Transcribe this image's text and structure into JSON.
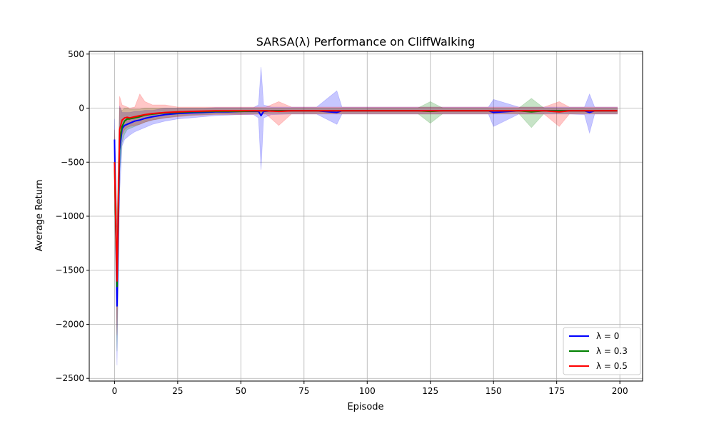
{
  "chart_data": {
    "type": "line",
    "title": "SARSA(λ) Performance on CliffWalking",
    "xlabel": "Episode",
    "ylabel": "Average Return",
    "xlim": [
      -10,
      209
    ],
    "ylim": [
      -2525,
      525
    ],
    "xticks": [
      0,
      25,
      50,
      75,
      100,
      125,
      150,
      175,
      200
    ],
    "xtick_labels": [
      "0",
      "25",
      "50",
      "75",
      "100",
      "125",
      "150",
      "175",
      "200"
    ],
    "yticks": [
      500,
      0,
      -500,
      -1000,
      -1500,
      -2000,
      -2500
    ],
    "ytick_labels": [
      "500",
      "0",
      "−500",
      "−1000",
      "−1500",
      "−2000",
      "−2500"
    ],
    "grid": true,
    "legend_position": "bottom-right",
    "band_alpha": 0.22,
    "series": [
      {
        "name": "λ = 0",
        "color": "#0000ff",
        "x": [
          0,
          1,
          2,
          3,
          4,
          5,
          6,
          8,
          10,
          12,
          15,
          20,
          25,
          30,
          35,
          40,
          45,
          50,
          55,
          57,
          58,
          59,
          62,
          70,
          80,
          88,
          90,
          100,
          110,
          120,
          130,
          140,
          148,
          150,
          160,
          170,
          180,
          186,
          188,
          190,
          199
        ],
        "y": [
          -290,
          -1830,
          -390,
          -190,
          -160,
          -150,
          -140,
          -120,
          -110,
          -95,
          -80,
          -60,
          -50,
          -45,
          -40,
          -35,
          -35,
          -30,
          -30,
          -30,
          -70,
          -30,
          -25,
          -25,
          -25,
          -40,
          -25,
          -25,
          -25,
          -25,
          -25,
          -25,
          -25,
          -40,
          -25,
          -25,
          -25,
          -25,
          -40,
          -25,
          -25
        ],
        "lower": [
          -500,
          -2380,
          -800,
          -350,
          -290,
          -270,
          -250,
          -220,
          -200,
          -180,
          -150,
          -120,
          -100,
          -90,
          -80,
          -70,
          -65,
          -60,
          -60,
          -90,
          -570,
          -90,
          -60,
          -55,
          -55,
          -150,
          -55,
          -55,
          -55,
          -55,
          -55,
          -55,
          -55,
          -170,
          -55,
          -55,
          -55,
          -60,
          -230,
          -55,
          -55
        ],
        "upper": [
          -100,
          -1300,
          20,
          -40,
          -40,
          -40,
          -40,
          -30,
          -30,
          -20,
          -20,
          0,
          0,
          0,
          0,
          5,
          5,
          5,
          5,
          30,
          380,
          30,
          10,
          10,
          10,
          160,
          10,
          10,
          10,
          10,
          10,
          10,
          10,
          80,
          10,
          10,
          10,
          10,
          130,
          10,
          10
        ]
      },
      {
        "name": "λ = 0.3",
        "color": "#008000",
        "x": [
          0,
          1,
          2,
          3,
          4,
          5,
          6,
          8,
          10,
          12,
          15,
          20,
          25,
          30,
          40,
          50,
          60,
          70,
          80,
          90,
          100,
          110,
          120,
          125,
          130,
          140,
          150,
          160,
          165,
          170,
          180,
          190,
          199
        ],
        "y": [
          -500,
          -1650,
          -300,
          -170,
          -120,
          -100,
          -100,
          -90,
          -80,
          -65,
          -55,
          -45,
          -40,
          -35,
          -30,
          -30,
          -25,
          -25,
          -25,
          -25,
          -25,
          -25,
          -25,
          -30,
          -25,
          -25,
          -25,
          -25,
          -35,
          -25,
          -25,
          -25,
          -25
        ],
        "lower": [
          -800,
          -2250,
          -600,
          -320,
          -240,
          -200,
          -190,
          -170,
          -150,
          -130,
          -110,
          -90,
          -75,
          -65,
          -55,
          -55,
          -50,
          -50,
          -50,
          -50,
          -50,
          -50,
          -50,
          -140,
          -50,
          -50,
          -50,
          -50,
          -180,
          -50,
          -50,
          -50,
          -50
        ],
        "upper": [
          -200,
          -1050,
          0,
          -20,
          0,
          0,
          -10,
          -10,
          -10,
          0,
          0,
          0,
          0,
          0,
          0,
          0,
          0,
          0,
          0,
          0,
          0,
          0,
          0,
          60,
          0,
          0,
          0,
          0,
          90,
          0,
          0,
          0,
          0
        ]
      },
      {
        "name": "λ = 0.5",
        "color": "#ff0000",
        "x": [
          0,
          1,
          2,
          3,
          4,
          5,
          6,
          8,
          10,
          12,
          15,
          20,
          25,
          30,
          40,
          50,
          60,
          65,
          70,
          80,
          90,
          100,
          110,
          120,
          130,
          140,
          150,
          160,
          170,
          176,
          180,
          190,
          199
        ],
        "y": [
          -500,
          -1600,
          -200,
          -110,
          -90,
          -85,
          -90,
          -80,
          -70,
          -60,
          -50,
          -40,
          -35,
          -30,
          -25,
          -25,
          -25,
          -30,
          -25,
          -25,
          -25,
          -25,
          -25,
          -25,
          -25,
          -25,
          -25,
          -25,
          -25,
          -35,
          -25,
          -25,
          -25
        ],
        "lower": [
          -800,
          -2100,
          -400,
          -250,
          -200,
          -180,
          -170,
          -160,
          -150,
          -130,
          -110,
          -90,
          -80,
          -70,
          -60,
          -60,
          -55,
          -160,
          -55,
          -55,
          -55,
          -55,
          -55,
          -55,
          -55,
          -55,
          -55,
          -55,
          -55,
          -170,
          -55,
          -55,
          -55
        ],
        "upper": [
          -200,
          -1100,
          110,
          30,
          20,
          10,
          0,
          10,
          130,
          60,
          30,
          30,
          10,
          10,
          10,
          10,
          10,
          60,
          10,
          10,
          10,
          10,
          10,
          10,
          10,
          10,
          10,
          10,
          10,
          60,
          10,
          10,
          10
        ]
      }
    ]
  }
}
